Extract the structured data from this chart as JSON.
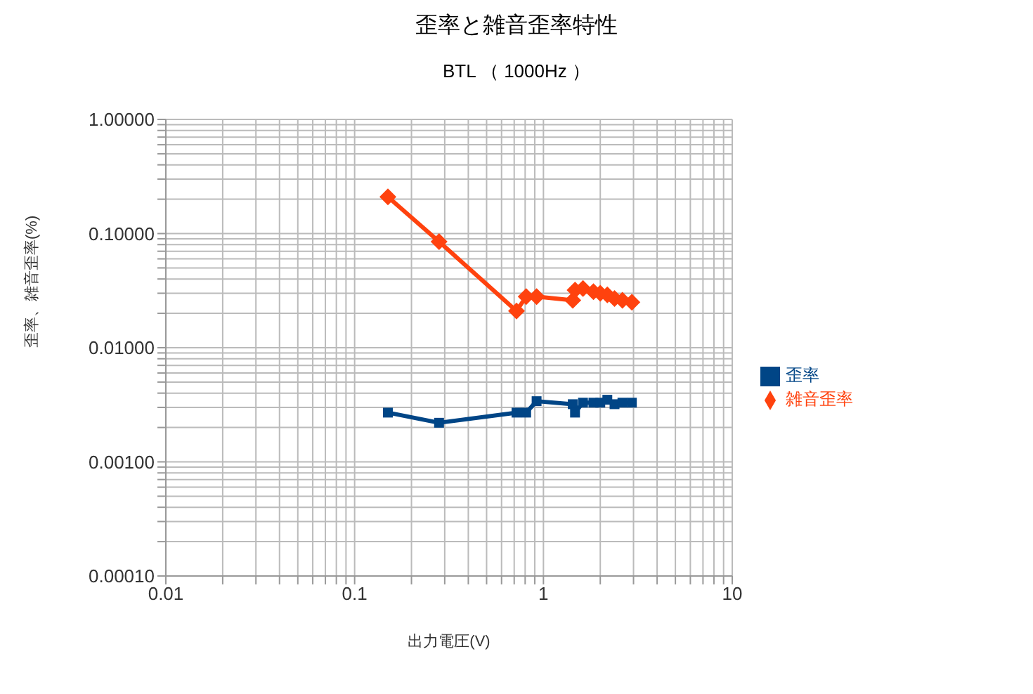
{
  "chart_data": {
    "type": "line",
    "title": "歪率と雑音歪率特性",
    "subtitle": "BTL （ 1000Hz ）",
    "xlabel": "出力電圧(V)",
    "ylabel": "歪率、雑音歪率(%)",
    "x": [
      0.15,
      0.28,
      0.72,
      0.81,
      0.92,
      1.43,
      1.47,
      1.62,
      1.84,
      2.0,
      2.18,
      2.38,
      2.62,
      2.94
    ],
    "series": [
      {
        "name": "歪率",
        "color": "#004586",
        "marker": "square",
        "values": [
          0.0027,
          0.0022,
          0.0027,
          0.0027,
          0.0034,
          0.0032,
          0.0027,
          0.0033,
          0.0033,
          0.0033,
          0.0035,
          0.0032,
          0.0033,
          0.0033
        ]
      },
      {
        "name": "雑音歪率",
        "color": "#ff420e",
        "marker": "diamond",
        "values": [
          0.21,
          0.085,
          0.021,
          0.028,
          0.028,
          0.026,
          0.032,
          0.033,
          0.031,
          0.03,
          0.029,
          0.027,
          0.026,
          0.025
        ]
      }
    ],
    "log": "xy",
    "grid": true,
    "legend": "right",
    "xlim": [
      0.01,
      10
    ],
    "xticks": [
      0.01,
      {
        "value": 0.02,
        "label": null
      },
      {
        "value": 0.03,
        "label": null
      },
      {
        "value": 0.04,
        "label": null
      },
      {
        "value": 0.05,
        "label": null
      },
      {
        "value": 0.06,
        "label": null
      },
      {
        "value": 0.07,
        "label": null
      },
      {
        "value": 0.08,
        "label": null
      },
      {
        "value": 0.09,
        "label": null
      },
      0.1,
      {
        "value": 0.2,
        "label": null
      },
      {
        "value": 0.3,
        "label": null
      },
      {
        "value": 0.4,
        "label": null
      },
      {
        "value": 0.5,
        "label": null
      },
      {
        "value": 0.6,
        "label": null
      },
      {
        "value": 0.7,
        "label": null
      },
      {
        "value": 0.8,
        "label": null
      },
      {
        "value": 0.9,
        "label": null
      },
      1,
      {
        "value": 2,
        "label": null
      },
      {
        "value": 3,
        "label": null
      },
      {
        "value": 4,
        "label": null
      },
      {
        "value": 5,
        "label": null
      },
      {
        "value": 6,
        "label": null
      },
      {
        "value": 7,
        "label": null
      },
      {
        "value": 8,
        "label": null
      },
      {
        "value": 9,
        "label": null
      },
      10
    ],
    "ylim": [
      0.0001,
      1
    ],
    "yticks": [
      {
        "value": 0.0001,
        "label": "0.00010"
      },
      {
        "value": 0.0002,
        "label": null
      },
      {
        "value": 0.0003,
        "label": null
      },
      {
        "value": 0.0004,
        "label": null
      },
      {
        "value": 0.0005,
        "label": null
      },
      {
        "value": 0.0006,
        "label": null
      },
      {
        "value": 0.0007,
        "label": null
      },
      {
        "value": 0.0008,
        "label": null
      },
      {
        "value": 0.0009,
        "label": null
      },
      {
        "value": 0.001,
        "label": "0.00100"
      },
      {
        "value": 0.002,
        "label": null
      },
      {
        "value": 0.003,
        "label": null
      },
      {
        "value": 0.004,
        "label": null
      },
      {
        "value": 0.005,
        "label": null
      },
      {
        "value": 0.006,
        "label": null
      },
      {
        "value": 0.007,
        "label": null
      },
      {
        "value": 0.008,
        "label": null
      },
      {
        "value": 0.009,
        "label": null
      },
      {
        "value": 0.01,
        "label": "0.01000"
      },
      {
        "value": 0.02,
        "label": null
      },
      {
        "value": 0.03,
        "label": null
      },
      {
        "value": 0.04,
        "label": null
      },
      {
        "value": 0.05,
        "label": null
      },
      {
        "value": 0.06,
        "label": null
      },
      {
        "value": 0.07,
        "label": null
      },
      {
        "value": 0.08,
        "label": null
      },
      {
        "value": 0.09,
        "label": null
      },
      {
        "value": 0.1,
        "label": "0.10000"
      },
      {
        "value": 0.2,
        "label": null
      },
      {
        "value": 0.3,
        "label": null
      },
      {
        "value": 0.4,
        "label": null
      },
      {
        "value": 0.5,
        "label": null
      },
      {
        "value": 0.6,
        "label": null
      },
      {
        "value": 0.7,
        "label": null
      },
      {
        "value": 0.8,
        "label": null
      },
      {
        "value": 0.9,
        "label": null
      },
      {
        "value": 1,
        "label": "1.00000"
      }
    ]
  }
}
